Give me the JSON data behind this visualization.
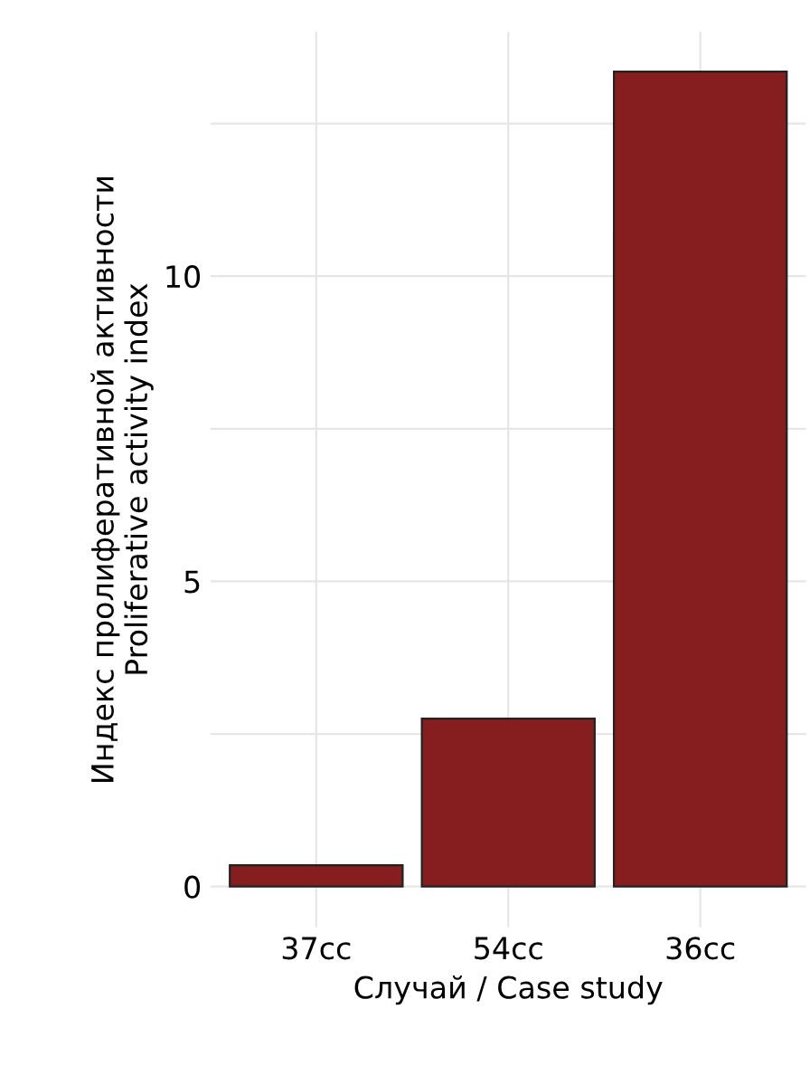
{
  "chart_data": {
    "type": "bar",
    "xlabel": "Случай / Case study",
    "ylabel": "Индекс пролиферативной активности\nProliferative activity index",
    "categories": [
      "37cc",
      "54cc",
      "36cc"
    ],
    "values": [
      0.35,
      2.75,
      13.35
    ],
    "color": "#861e1f",
    "ylim": [
      -0.67,
      14.0
    ],
    "yticks": [
      0,
      {
        "value": 2.5,
        "label": null
      },
      5,
      {
        "value": 7.5,
        "label": null
      },
      10,
      {
        "value": 12.5,
        "label": null
      }
    ],
    "grid": true
  }
}
